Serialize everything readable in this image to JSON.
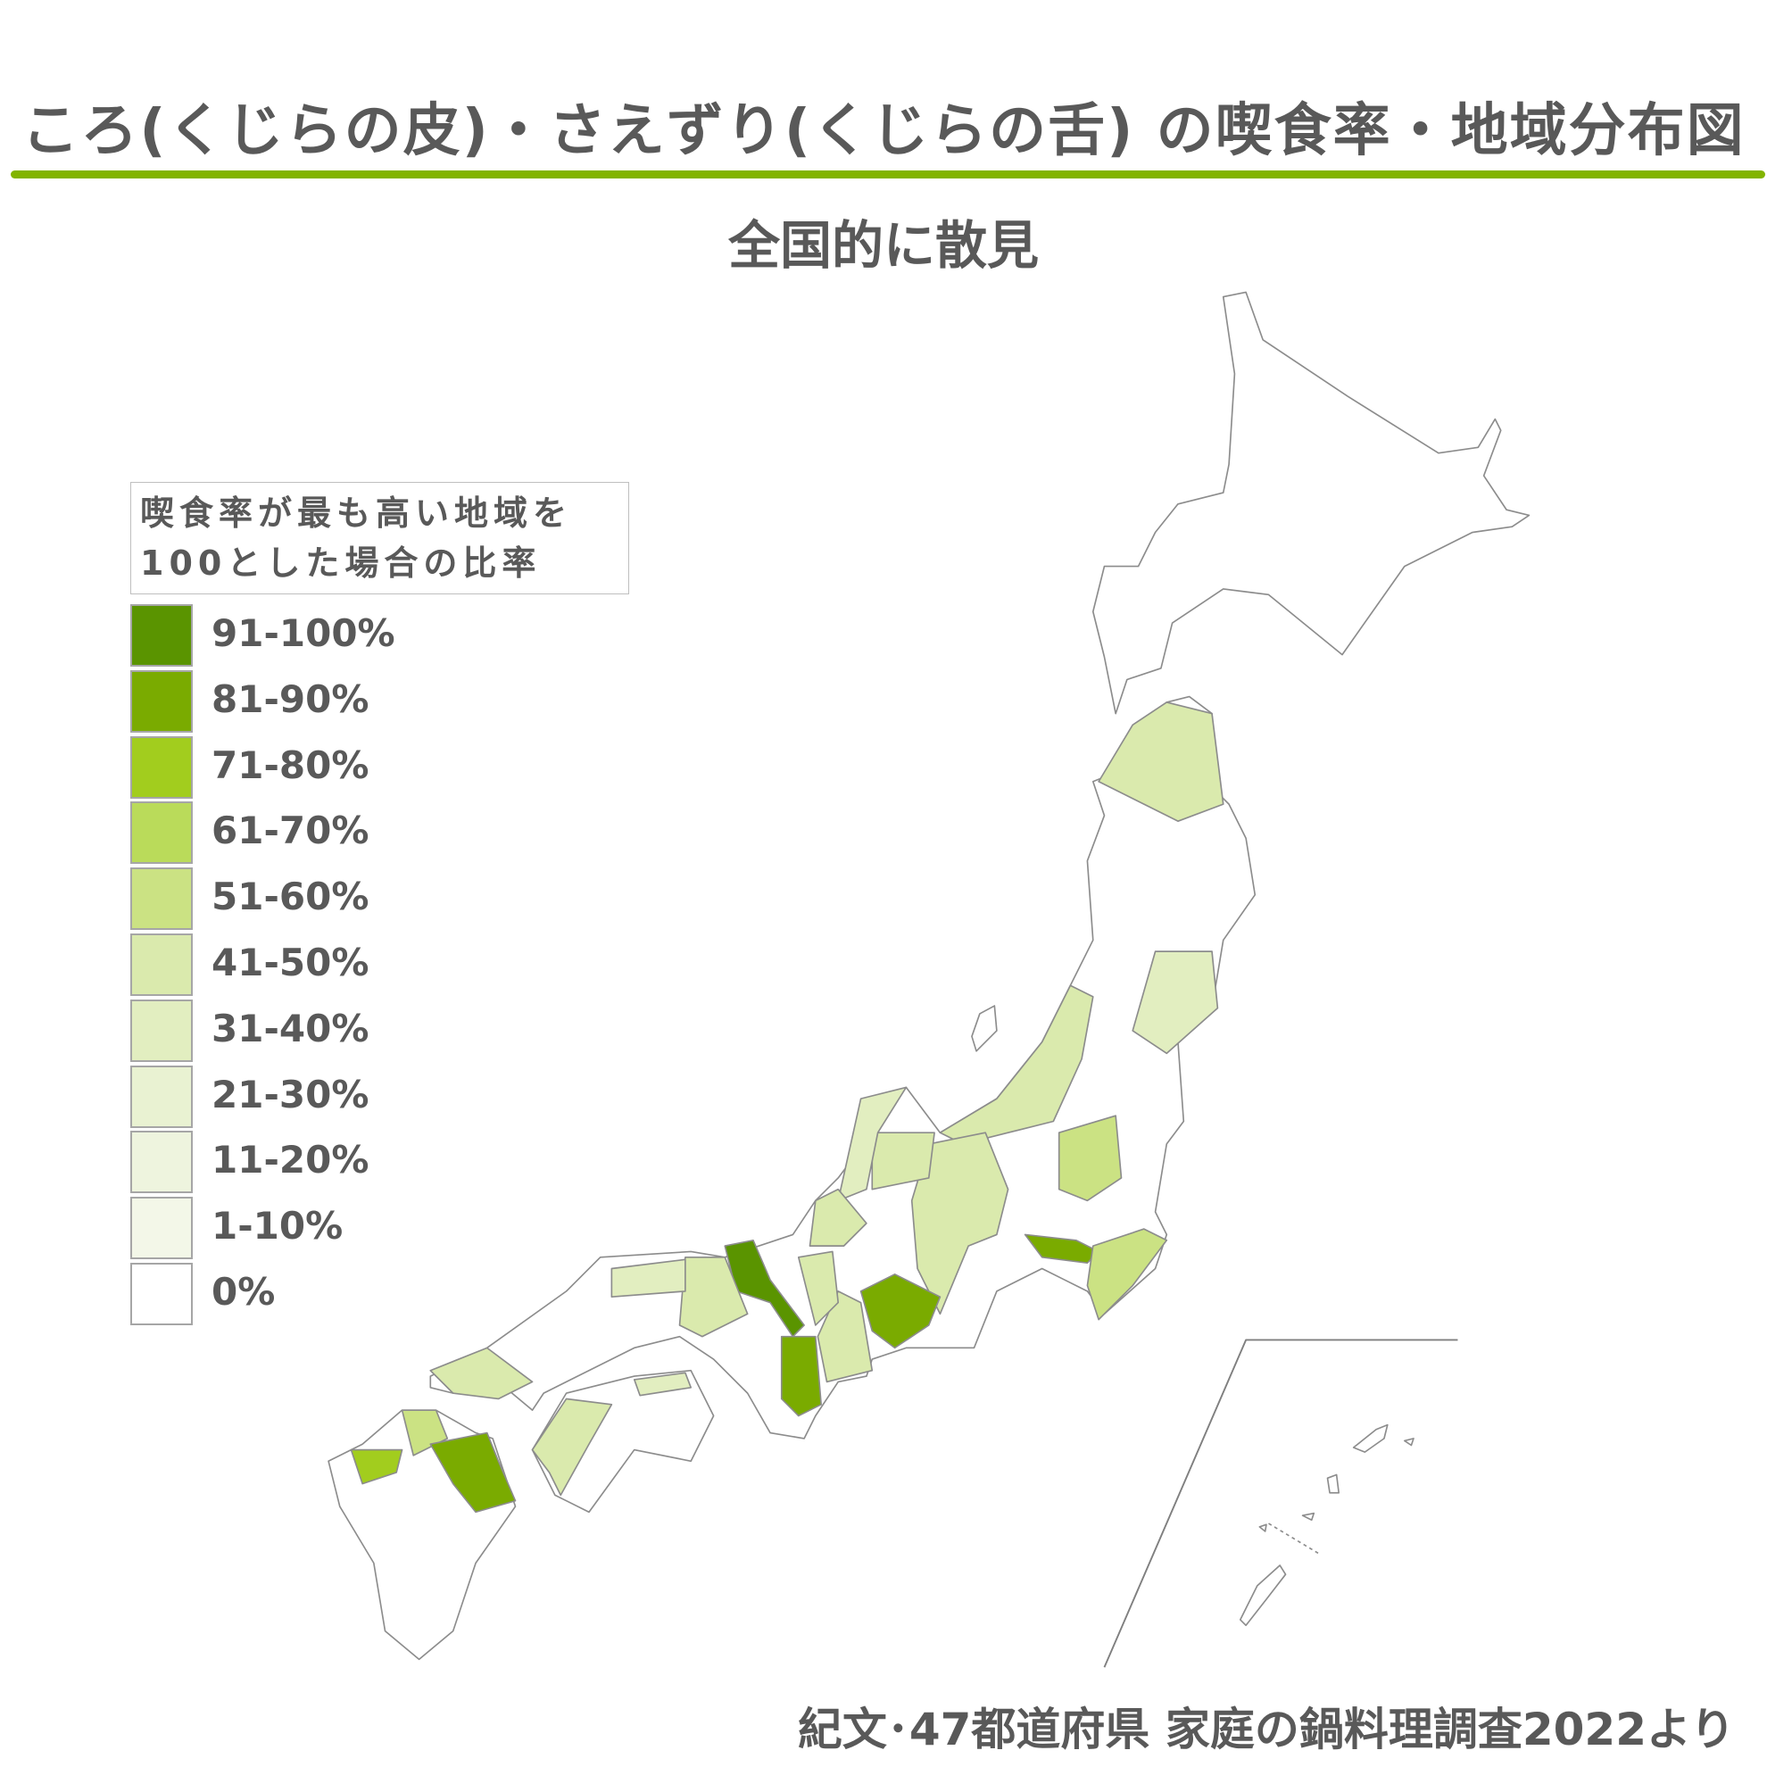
{
  "title": "ころ(くじらの皮)・さえずり(くじらの舌) の喫食率・地域分布図",
  "subtitle": "全国的に散見",
  "legend": {
    "title_line1": "喫食率が最も高い地域を",
    "title_line2": "100とした場合の比率",
    "items": [
      {
        "label": "91-100%",
        "color": "#5a9400"
      },
      {
        "label": "81-90%",
        "color": "#7aab00"
      },
      {
        "label": "71-80%",
        "color": "#a2cd1e"
      },
      {
        "label": "61-70%",
        "color": "#badb5a"
      },
      {
        "label": "51-60%",
        "color": "#cbe283"
      },
      {
        "label": "41-50%",
        "color": "#daeaad"
      },
      {
        "label": "31-40%",
        "color": "#e2eec0"
      },
      {
        "label": "21-30%",
        "color": "#e9f2d2"
      },
      {
        "label": "11-20%",
        "color": "#eef4de"
      },
      {
        "label": "1-10%",
        "color": "#f3f7e8"
      },
      {
        "label": "0%",
        "color": "#ffffff"
      }
    ]
  },
  "map": {
    "accent_color": "#82b400",
    "border_color": "#8c8c8c",
    "fills": [
      {
        "prefecture": "Aomori",
        "class": "41-50%"
      },
      {
        "prefecture": "Miyagi",
        "class": "31-40%"
      },
      {
        "prefecture": "Niigata",
        "class": "41-50%"
      },
      {
        "prefecture": "Tochigi",
        "class": "51-60%"
      },
      {
        "prefecture": "Tokyo",
        "class": "81-90%"
      },
      {
        "prefecture": "Chiba",
        "class": "51-60%"
      },
      {
        "prefecture": "Nagano",
        "class": "41-50%"
      },
      {
        "prefecture": "Toyama",
        "class": "41-50%"
      },
      {
        "prefecture": "Ishikawa",
        "class": "31-40%"
      },
      {
        "prefecture": "Fukui",
        "class": "41-50%"
      },
      {
        "prefecture": "Aichi",
        "class": "81-90%"
      },
      {
        "prefecture": "Kyoto",
        "class": "91-100%"
      },
      {
        "prefecture": "Nara",
        "class": "81-90%"
      },
      {
        "prefecture": "Mie",
        "class": "41-50%"
      },
      {
        "prefecture": "Shiga",
        "class": "41-50%"
      },
      {
        "prefecture": "Hyogo",
        "class": "41-50%"
      },
      {
        "prefecture": "Tottori",
        "class": "31-40%"
      },
      {
        "prefecture": "Yamaguchi",
        "class": "41-50%"
      },
      {
        "prefecture": "Fukuoka",
        "class": "51-60%"
      },
      {
        "prefecture": "Saga",
        "class": "71-80%"
      },
      {
        "prefecture": "Oita",
        "class": "81-90%"
      },
      {
        "prefecture": "Ehime",
        "class": "41-50%"
      },
      {
        "prefecture": "Kagawa",
        "class": "31-40%"
      }
    ]
  },
  "source": "紀文･47都道府県 家庭の鍋料理調査2022より"
}
